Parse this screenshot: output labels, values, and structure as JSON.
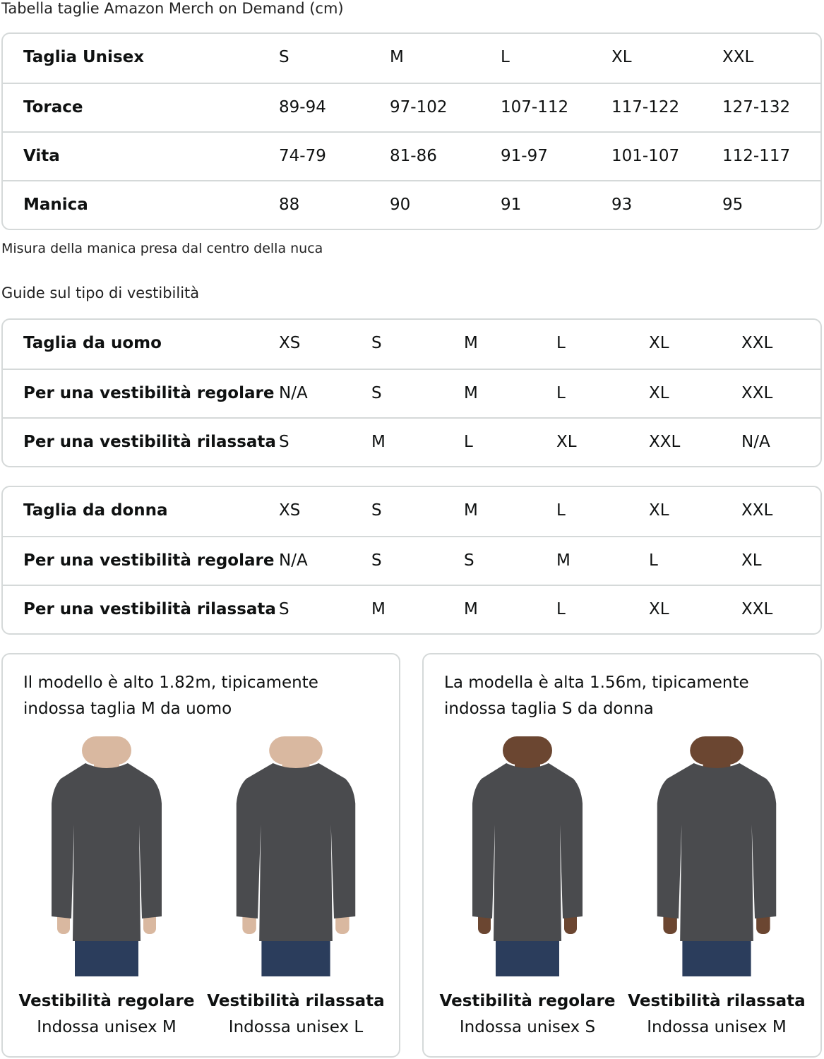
{
  "title": "Tabella taglie Amazon Merch on Demand (cm)",
  "unisex_table": {
    "rows": [
      [
        "Taglia Unisex",
        "S",
        "M",
        "L",
        "XL",
        "XXL"
      ],
      [
        "Torace",
        "89-94",
        "97-102",
        "107-112",
        "117-122",
        "127-132"
      ],
      [
        "Vita",
        "74-79",
        "81-86",
        "91-97",
        "101-107",
        "112-117"
      ],
      [
        "Manica",
        "88",
        "90",
        "91",
        "93",
        "95"
      ]
    ]
  },
  "sleeve_note": "Misura della manica presa dal centro della nuca",
  "fit_guide_title": "Guide sul tipo di vestibilità",
  "men_table": {
    "rows": [
      [
        "Taglia da uomo",
        "XS",
        "S",
        "M",
        "L",
        "XL",
        "XXL"
      ],
      [
        "Per una vestibilità regolare",
        "N/A",
        "S",
        "M",
        "L",
        "XL",
        "XXL"
      ],
      [
        "Per una vestibilità rilassata",
        "S",
        "M",
        "L",
        "XL",
        "XXL",
        "N/A"
      ]
    ]
  },
  "women_table": {
    "rows": [
      [
        "Taglia da donna",
        "XS",
        "S",
        "M",
        "L",
        "XL",
        "XXL"
      ],
      [
        "Per una vestibilità regolare",
        "N/A",
        "S",
        "S",
        "M",
        "L",
        "XL"
      ],
      [
        "Per una vestibilità rilassata",
        "S",
        "M",
        "M",
        "L",
        "XL",
        "XXL"
      ]
    ]
  },
  "cards": [
    {
      "line1": "Il modello è alto 1.82m, tipicamente",
      "line2": "indossa taglia M da uomo",
      "figures": [
        {
          "fit": "Vestibilità regolare",
          "wears": "Indossa unisex M"
        },
        {
          "fit": "Vestibilità rilassata",
          "wears": "Indossa unisex L"
        }
      ]
    },
    {
      "line1": "La modella è alta 1.56m, tipicamente",
      "line2": "indossa taglia S da donna",
      "figures": [
        {
          "fit": "Vestibilità regolare",
          "wears": "Indossa unisex S"
        },
        {
          "fit": "Vestibilità rilassata",
          "wears": "Indossa unisex M"
        }
      ]
    }
  ],
  "colors": {
    "border": "#d5d9d9",
    "shirt": "#4a4b4e",
    "jeans": "#2b3d5c"
  }
}
